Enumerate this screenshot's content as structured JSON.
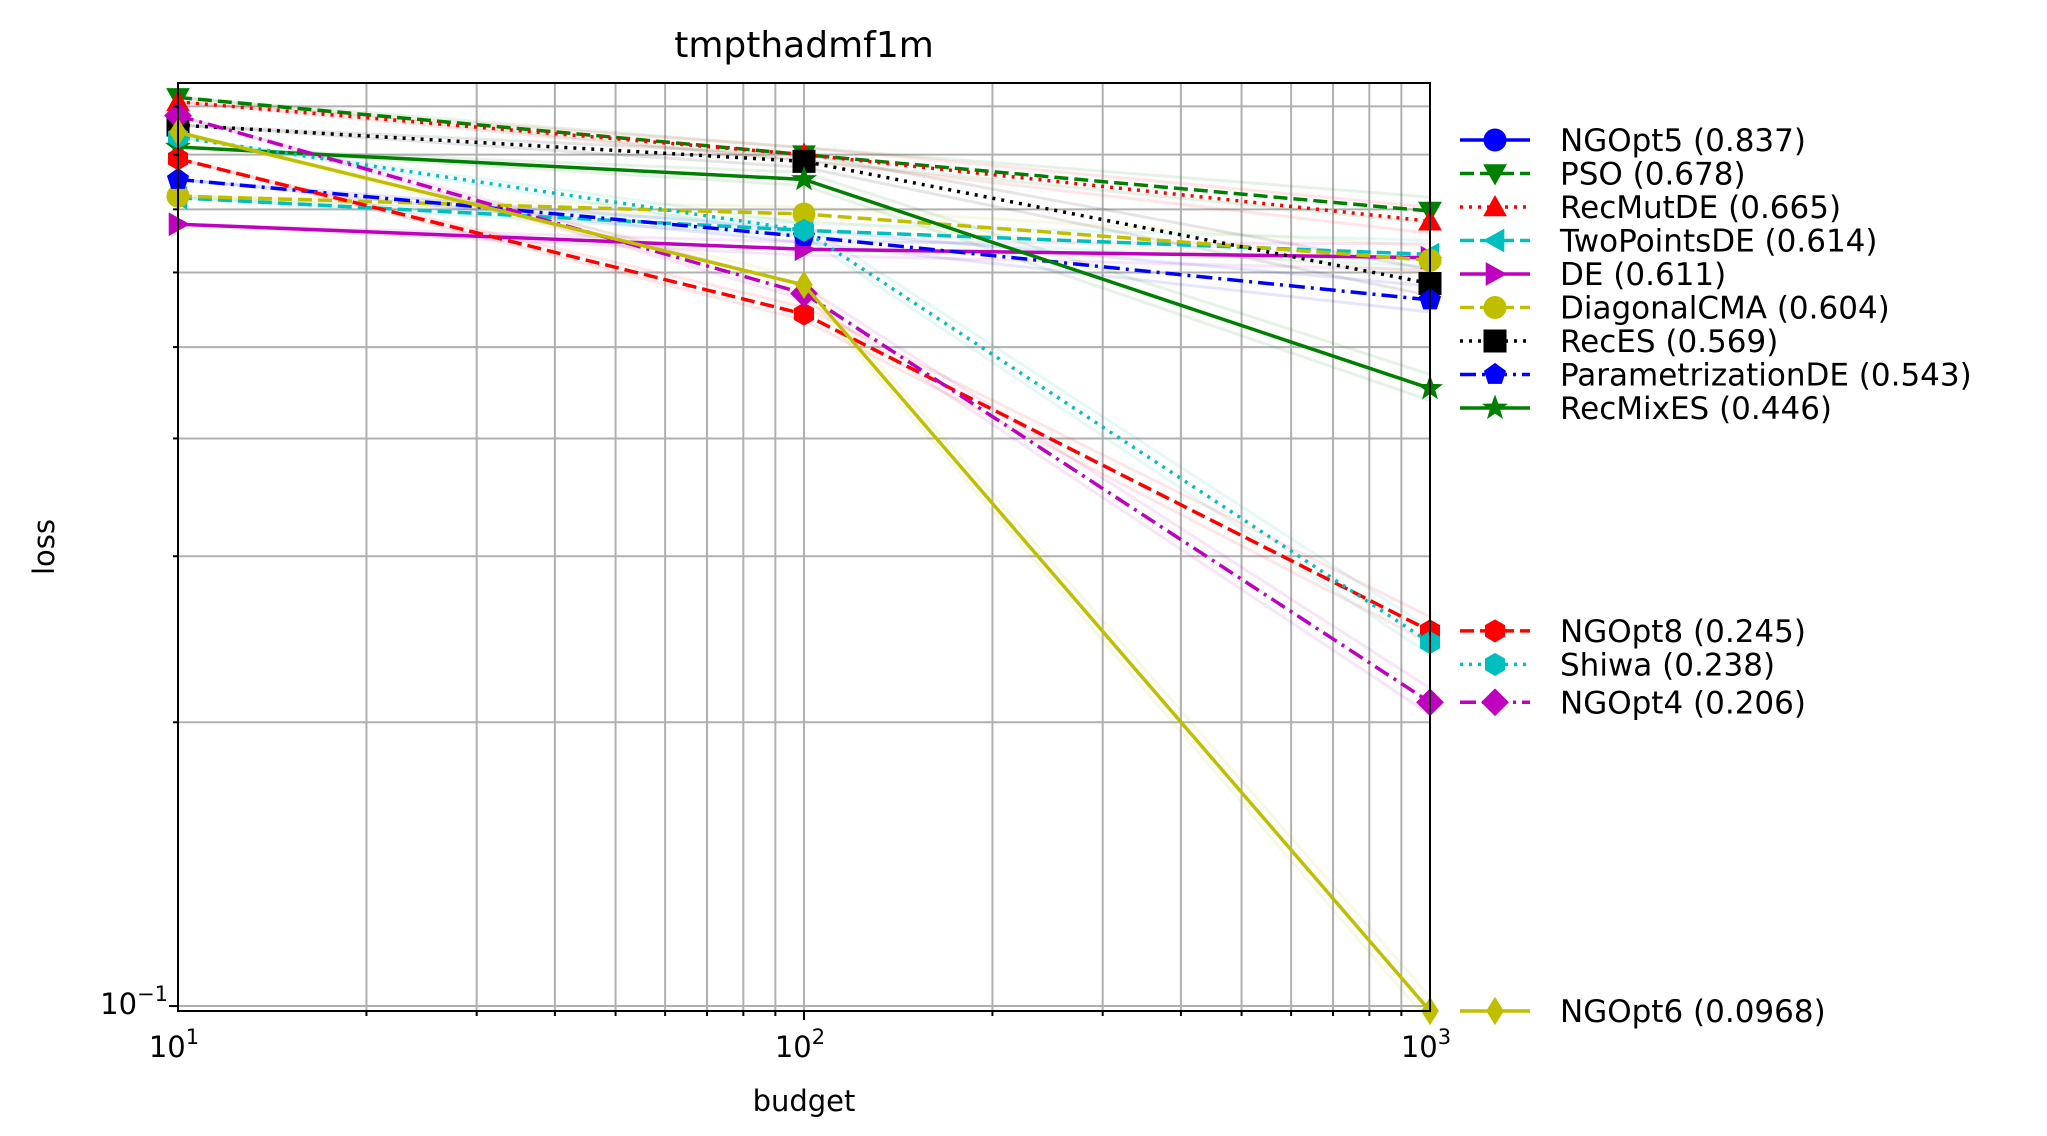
{
  "chart_data": {
    "type": "line",
    "title": "tmpthadmf1m",
    "xlabel": "budget",
    "ylabel": "loss",
    "xscale": "log",
    "yscale": "log",
    "xlim": [
      10,
      1000
    ],
    "ylim": [
      0.0988,
      0.953
    ],
    "grid": true,
    "legend_placement": "outside-right",
    "x": [
      10,
      100,
      1000
    ],
    "x_ticks": [
      {
        "value": 10,
        "base": "10",
        "exp": "1"
      },
      {
        "value": 100,
        "base": "10",
        "exp": "2"
      },
      {
        "value": 1000,
        "base": "10",
        "exp": "3"
      }
    ],
    "y_ticks": [
      {
        "value": 0.1,
        "base": "10",
        "exp": "−1"
      }
    ],
    "series": [
      {
        "name": "NGOpt5 (0.837)",
        "color": "#0000ff",
        "dash": "solid",
        "marker": "circle",
        "values": [
          null,
          null,
          null
        ]
      },
      {
        "name": "PSO (0.678)",
        "color": "#008000",
        "dash": "dashed",
        "marker": "triangle-down",
        "values": [
          0.92,
          0.8,
          0.697
        ]
      },
      {
        "name": "RecMutDE (0.665)",
        "color": "#ff0000",
        "dash": "dotted",
        "marker": "triangle-up",
        "values": [
          0.91,
          0.8,
          0.68
        ]
      },
      {
        "name": "TwoPointsDE (0.614)",
        "color": "#00bfbf",
        "dash": "dashed",
        "marker": "triangle-left",
        "values": [
          0.72,
          0.665,
          0.627
        ]
      },
      {
        "name": "DE (0.611)",
        "color": "#bf00bf",
        "dash": "solid",
        "marker": "triangle-right",
        "values": [
          0.675,
          0.635,
          0.622
        ]
      },
      {
        "name": "DiagonalCMA (0.604)",
        "color": "#bfbf00",
        "dash": "dashed",
        "marker": "circle",
        "values": [
          0.723,
          0.692,
          0.618
        ]
      },
      {
        "name": "RecES (0.569)",
        "color": "#000000",
        "dash": "dotted",
        "marker": "square",
        "values": [
          0.86,
          0.787,
          0.584
        ]
      },
      {
        "name": "ParametrizationDE (0.543)",
        "color": "#0000ff",
        "dash": "dashdot",
        "marker": "pentagon",
        "values": [
          0.753,
          0.655,
          0.561
        ]
      },
      {
        "name": "RecMixES (0.446)",
        "color": "#008000",
        "dash": "solid",
        "marker": "star",
        "values": [
          0.815,
          0.753,
          0.452
        ]
      },
      {
        "name": "NGOpt8 (0.245)",
        "color": "#ff0000",
        "dash": "dashed",
        "marker": "hexagon",
        "values": [
          0.792,
          0.542,
          0.25
        ]
      },
      {
        "name": "Shiwa (0.238)",
        "color": "#00bfbf",
        "dash": "dotted",
        "marker": "hexagon",
        "values": [
          0.835,
          0.665,
          0.243
        ]
      },
      {
        "name": "NGOpt4 (0.206)",
        "color": "#bf00bf",
        "dash": "dashdot",
        "marker": "diamond",
        "values": [
          0.88,
          0.57,
          0.21
        ]
      },
      {
        "name": "NGOpt6 (0.0968)",
        "color": "#bfbf00",
        "dash": "solid",
        "marker": "thin-diamond",
        "values": [
          0.845,
          0.582,
          0.0988
        ]
      }
    ]
  }
}
